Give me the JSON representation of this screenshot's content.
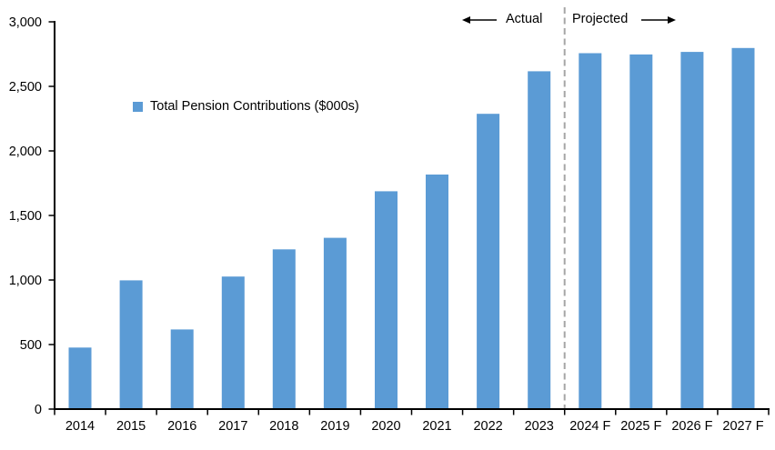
{
  "chart_data": {
    "type": "bar",
    "title": "",
    "legend": {
      "label": "Total Pension Contributions ($000s)",
      "marker_color": "#5B9BD5",
      "position": "inside-upper-left"
    },
    "categories": [
      "2014",
      "2015",
      "2016",
      "2017",
      "2018",
      "2019",
      "2020",
      "2021",
      "2022",
      "2023",
      "2024 F",
      "2025 F",
      "2026 F",
      "2027 F"
    ],
    "values": [
      470,
      990,
      610,
      1020,
      1230,
      1320,
      1680,
      1810,
      2280,
      2610,
      2750,
      2740,
      2760,
      2790
    ],
    "xlabel": "",
    "ylabel": "",
    "ylim": [
      0,
      3000
    ],
    "ytick_step": 500,
    "ytick_labels": [
      "0",
      "500",
      "1,000",
      "1,500",
      "2,000",
      "2,500",
      "3,000"
    ],
    "grid": false,
    "bar_color": "#5B9BD5",
    "axis_color": "#000000",
    "divider": {
      "color": "#A6A6A6",
      "style": "dashed",
      "after_category": "2023"
    },
    "annotations": {
      "actual_label": "Actual",
      "projected_label": "Projected"
    }
  }
}
